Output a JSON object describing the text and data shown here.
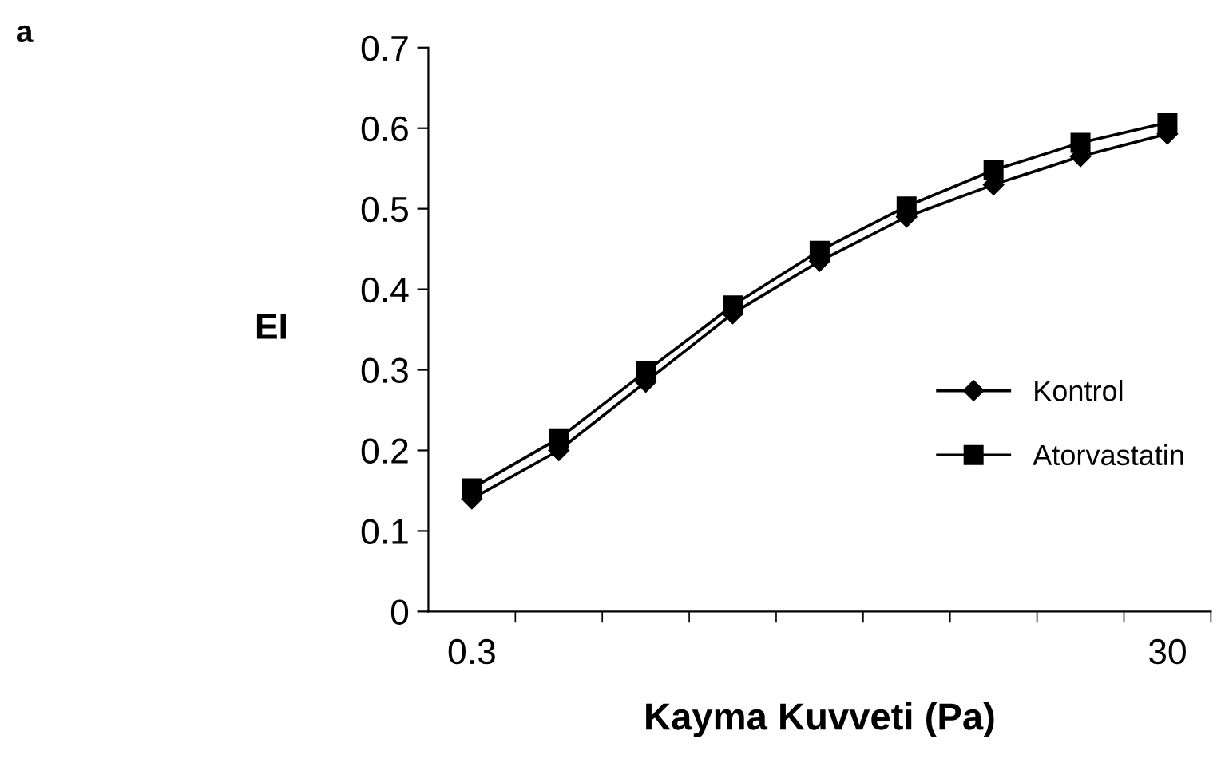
{
  "chart_data": {
    "type": "line",
    "xlabel": "Kayma Kuvveti (Pa)",
    "ylabel": "EI",
    "annotations": [
      "a"
    ],
    "categories": [
      "0.3",
      null,
      null,
      null,
      null,
      null,
      null,
      null,
      "30"
    ],
    "series": [
      {
        "name": "Kontrol",
        "color": "#000000",
        "marker": "diamond",
        "values": [
          0.14,
          0.2,
          0.285,
          0.37,
          0.435,
          0.49,
          0.53,
          0.565,
          0.593
        ]
      },
      {
        "name": "Atorvastatin",
        "color": "#000000",
        "marker": "square",
        "values": [
          0.153,
          0.215,
          0.298,
          0.38,
          0.448,
          0.503,
          0.548,
          0.582,
          0.607
        ]
      }
    ],
    "ylim": [
      0,
      0.7
    ],
    "yticks": [
      0,
      0.1,
      0.2,
      0.3,
      0.4,
      0.5,
      0.6,
      0.7
    ],
    "grid": false,
    "legend": "right",
    "line_style": "solid"
  }
}
